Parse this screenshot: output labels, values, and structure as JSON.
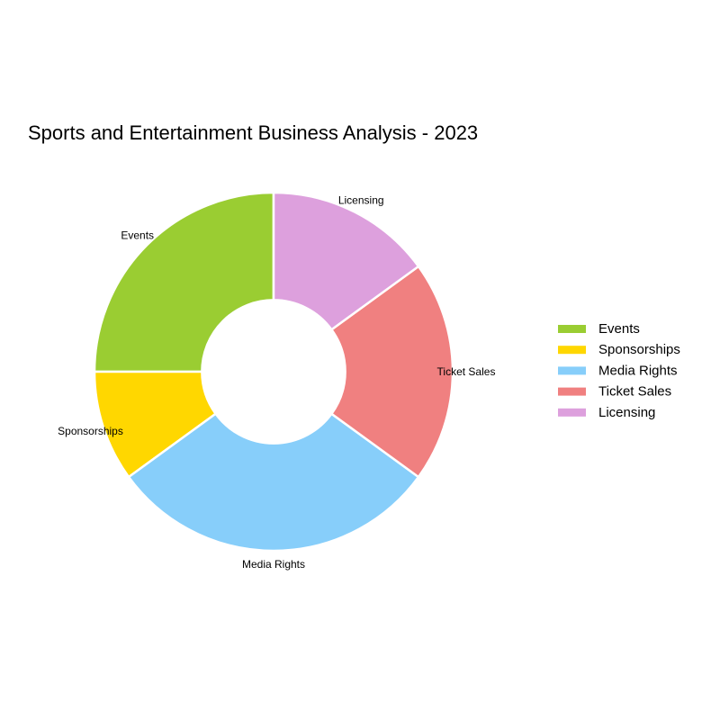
{
  "chart_data": {
    "type": "pie",
    "title": "Sports and Entertainment Business Analysis - 2023",
    "hole": 0.4,
    "start_angle_deg": 0,
    "direction": "counterclockwise",
    "slice_border_color": "#ffffff",
    "legend_position": "right",
    "labels_position": "outside",
    "categories": [
      "Events",
      "Sponsorships",
      "Media Rights",
      "Ticket Sales",
      "Licensing"
    ],
    "values": [
      25,
      10,
      30,
      20,
      15
    ],
    "colors": [
      "#9ACD32",
      "#FFD700",
      "#87CEFA",
      "#F08080",
      "#DDA0DD"
    ]
  }
}
